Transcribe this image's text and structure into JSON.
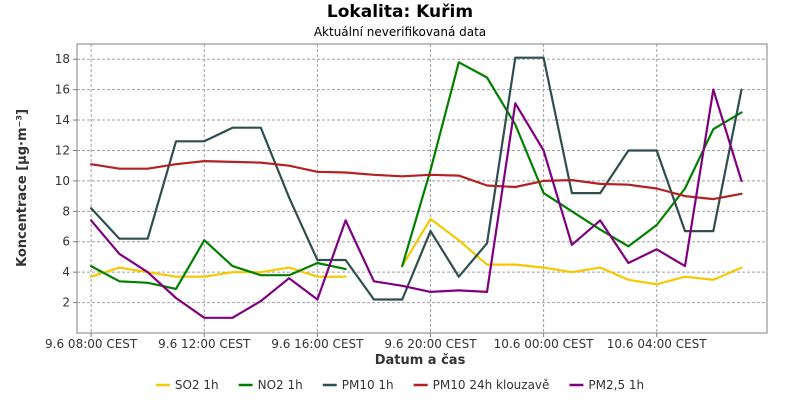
{
  "chart_data": {
    "type": "line",
    "title": "Lokalita: Kuřim",
    "subtitle": "Aktuální neverifikovaná data",
    "xlabel": "Datum a čas",
    "ylabel": "Koncentrace [µg·m⁻³]",
    "x_ticks": [
      {
        "label": "9.6 08:00 CEST",
        "x": 0
      },
      {
        "label": "9.6 12:00 CEST",
        "x": 4
      },
      {
        "label": "9.6 16:00 CEST",
        "x": 8
      },
      {
        "label": "9.6 20:00 CEST",
        "x": 12
      },
      {
        "label": "10.6 00:00 CEST",
        "x": 16
      },
      {
        "label": "10.6 04:00 CEST",
        "x": 20
      }
    ],
    "x_range": [
      -0.5,
      23.9
    ],
    "y_ticks": [
      2,
      4,
      6,
      8,
      10,
      12,
      14,
      16,
      18
    ],
    "ylim": [
      0,
      19
    ],
    "grid": true,
    "legend_position": "bottom",
    "series": [
      {
        "name": "SO2 1h",
        "color": "#f5c800",
        "values": [
          3.7,
          4.3,
          4.0,
          3.7,
          3.7,
          4.0,
          4.0,
          4.3,
          3.7,
          3.7,
          null,
          4.4,
          7.5,
          6.1,
          4.5,
          4.5,
          4.3,
          4.0,
          4.3,
          3.5,
          3.2,
          3.7,
          3.5,
          4.3
        ]
      },
      {
        "name": "NO2 1h",
        "color": "#008000",
        "values": [
          4.4,
          3.4,
          3.3,
          2.9,
          6.1,
          4.4,
          3.8,
          3.8,
          4.6,
          4.2,
          null,
          4.4,
          10.7,
          17.8,
          16.8,
          13.7,
          9.2,
          8.0,
          6.8,
          5.7,
          7.1,
          9.5,
          13.4,
          14.5
        ]
      },
      {
        "name": "PM10 1h",
        "color": "#2f4f4f",
        "values": [
          8.2,
          6.2,
          6.2,
          12.6,
          12.6,
          13.5,
          13.5,
          8.9,
          4.8,
          4.8,
          2.2,
          2.2,
          6.7,
          3.7,
          5.9,
          18.1,
          18.1,
          9.2,
          9.2,
          12.0,
          12.0,
          6.7,
          6.7,
          16.0
        ]
      },
      {
        "name": "PM10 24h klouzavě",
        "color": "#b22222",
        "values": [
          11.1,
          10.8,
          10.8,
          11.1,
          11.3,
          11.25,
          11.2,
          11.0,
          10.6,
          10.55,
          10.4,
          10.3,
          10.4,
          10.35,
          9.7,
          9.6,
          10.0,
          10.05,
          9.8,
          9.75,
          9.5,
          9.0,
          8.8,
          9.15
        ]
      },
      {
        "name": "PM2,5 1h",
        "color": "#800080",
        "values": [
          7.4,
          5.2,
          4.0,
          2.3,
          1.0,
          1.0,
          2.1,
          3.6,
          2.2,
          7.4,
          3.4,
          3.1,
          2.7,
          2.8,
          2.7,
          15.1,
          12.0,
          5.8,
          7.4,
          4.6,
          5.5,
          4.4,
          16.0,
          10.0
        ]
      }
    ]
  }
}
